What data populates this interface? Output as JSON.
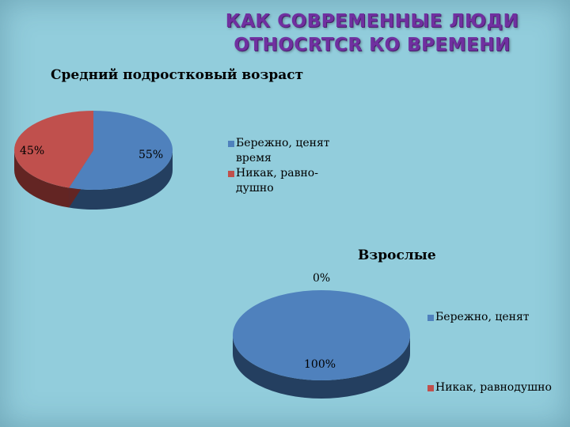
{
  "title": {
    "line1": "КАК СОВРЕМЕННЫЕ ЛЮДИ",
    "line2": "OTHOCRTCR КО ВРЕМЕНИ"
  },
  "chart_data": [
    {
      "type": "pie",
      "title": "Средний подростковый возраст",
      "labels": [
        "Бережно, ценят время",
        "Никак, равно-душно"
      ],
      "legend_lines": [
        [
          "Бережно, ценят",
          "время"
        ],
        [
          "Никак, равно-",
          "душно"
        ]
      ],
      "values": [
        55,
        45
      ],
      "data_labels": [
        "55%",
        "45%"
      ],
      "colors": [
        "#4F81BD",
        "#C0504D"
      ],
      "dark_colors": [
        "#243F60",
        "#632523"
      ],
      "legend_position": "right"
    },
    {
      "type": "pie",
      "title": "Взрослые",
      "labels": [
        "Бережно, ценят",
        "Никак, равнодушно"
      ],
      "values": [
        100,
        0
      ],
      "data_labels": [
        "100%",
        "0%"
      ],
      "colors": [
        "#4F81BD",
        "#C0504D"
      ],
      "dark_colors": [
        "#243F60",
        "#632523"
      ],
      "legend_position": "right"
    }
  ]
}
